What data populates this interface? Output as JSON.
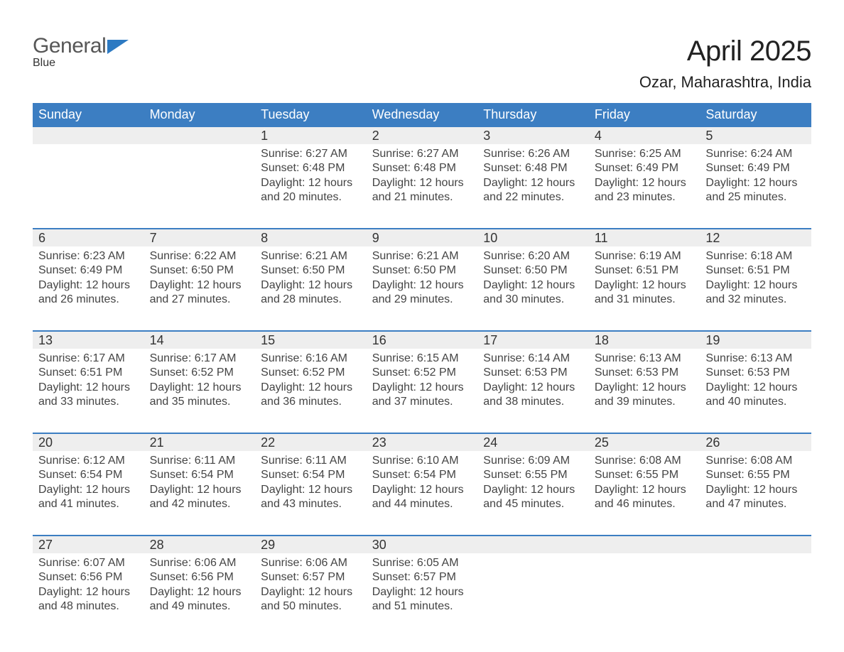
{
  "brand": {
    "part1": "General",
    "part2": "Blue"
  },
  "colors": {
    "header_blue": "#3c7ec2",
    "divider_blue": "#3c7ec2",
    "daynum_bg": "#eeeeee",
    "logo_gray": "#575757",
    "logo_blue": "#2d7ac2",
    "background": "#ffffff",
    "text": "#333333"
  },
  "title": "April 2025",
  "subtitle": "Ozar, Maharashtra, India",
  "weekdays": [
    "Sunday",
    "Monday",
    "Tuesday",
    "Wednesday",
    "Thursday",
    "Friday",
    "Saturday"
  ],
  "weeks": [
    [
      {
        "empty": true
      },
      {
        "empty": true
      },
      {
        "n": "1",
        "sunrise": "Sunrise: 6:27 AM",
        "sunset": "Sunset: 6:48 PM",
        "d1": "Daylight: 12 hours",
        "d2": "and 20 minutes."
      },
      {
        "n": "2",
        "sunrise": "Sunrise: 6:27 AM",
        "sunset": "Sunset: 6:48 PM",
        "d1": "Daylight: 12 hours",
        "d2": "and 21 minutes."
      },
      {
        "n": "3",
        "sunrise": "Sunrise: 6:26 AM",
        "sunset": "Sunset: 6:48 PM",
        "d1": "Daylight: 12 hours",
        "d2": "and 22 minutes."
      },
      {
        "n": "4",
        "sunrise": "Sunrise: 6:25 AM",
        "sunset": "Sunset: 6:49 PM",
        "d1": "Daylight: 12 hours",
        "d2": "and 23 minutes."
      },
      {
        "n": "5",
        "sunrise": "Sunrise: 6:24 AM",
        "sunset": "Sunset: 6:49 PM",
        "d1": "Daylight: 12 hours",
        "d2": "and 25 minutes."
      }
    ],
    [
      {
        "n": "6",
        "sunrise": "Sunrise: 6:23 AM",
        "sunset": "Sunset: 6:49 PM",
        "d1": "Daylight: 12 hours",
        "d2": "and 26 minutes."
      },
      {
        "n": "7",
        "sunrise": "Sunrise: 6:22 AM",
        "sunset": "Sunset: 6:50 PM",
        "d1": "Daylight: 12 hours",
        "d2": "and 27 minutes."
      },
      {
        "n": "8",
        "sunrise": "Sunrise: 6:21 AM",
        "sunset": "Sunset: 6:50 PM",
        "d1": "Daylight: 12 hours",
        "d2": "and 28 minutes."
      },
      {
        "n": "9",
        "sunrise": "Sunrise: 6:21 AM",
        "sunset": "Sunset: 6:50 PM",
        "d1": "Daylight: 12 hours",
        "d2": "and 29 minutes."
      },
      {
        "n": "10",
        "sunrise": "Sunrise: 6:20 AM",
        "sunset": "Sunset: 6:50 PM",
        "d1": "Daylight: 12 hours",
        "d2": "and 30 minutes."
      },
      {
        "n": "11",
        "sunrise": "Sunrise: 6:19 AM",
        "sunset": "Sunset: 6:51 PM",
        "d1": "Daylight: 12 hours",
        "d2": "and 31 minutes."
      },
      {
        "n": "12",
        "sunrise": "Sunrise: 6:18 AM",
        "sunset": "Sunset: 6:51 PM",
        "d1": "Daylight: 12 hours",
        "d2": "and 32 minutes."
      }
    ],
    [
      {
        "n": "13",
        "sunrise": "Sunrise: 6:17 AM",
        "sunset": "Sunset: 6:51 PM",
        "d1": "Daylight: 12 hours",
        "d2": "and 33 minutes."
      },
      {
        "n": "14",
        "sunrise": "Sunrise: 6:17 AM",
        "sunset": "Sunset: 6:52 PM",
        "d1": "Daylight: 12 hours",
        "d2": "and 35 minutes."
      },
      {
        "n": "15",
        "sunrise": "Sunrise: 6:16 AM",
        "sunset": "Sunset: 6:52 PM",
        "d1": "Daylight: 12 hours",
        "d2": "and 36 minutes."
      },
      {
        "n": "16",
        "sunrise": "Sunrise: 6:15 AM",
        "sunset": "Sunset: 6:52 PM",
        "d1": "Daylight: 12 hours",
        "d2": "and 37 minutes."
      },
      {
        "n": "17",
        "sunrise": "Sunrise: 6:14 AM",
        "sunset": "Sunset: 6:53 PM",
        "d1": "Daylight: 12 hours",
        "d2": "and 38 minutes."
      },
      {
        "n": "18",
        "sunrise": "Sunrise: 6:13 AM",
        "sunset": "Sunset: 6:53 PM",
        "d1": "Daylight: 12 hours",
        "d2": "and 39 minutes."
      },
      {
        "n": "19",
        "sunrise": "Sunrise: 6:13 AM",
        "sunset": "Sunset: 6:53 PM",
        "d1": "Daylight: 12 hours",
        "d2": "and 40 minutes."
      }
    ],
    [
      {
        "n": "20",
        "sunrise": "Sunrise: 6:12 AM",
        "sunset": "Sunset: 6:54 PM",
        "d1": "Daylight: 12 hours",
        "d2": "and 41 minutes."
      },
      {
        "n": "21",
        "sunrise": "Sunrise: 6:11 AM",
        "sunset": "Sunset: 6:54 PM",
        "d1": "Daylight: 12 hours",
        "d2": "and 42 minutes."
      },
      {
        "n": "22",
        "sunrise": "Sunrise: 6:11 AM",
        "sunset": "Sunset: 6:54 PM",
        "d1": "Daylight: 12 hours",
        "d2": "and 43 minutes."
      },
      {
        "n": "23",
        "sunrise": "Sunrise: 6:10 AM",
        "sunset": "Sunset: 6:54 PM",
        "d1": "Daylight: 12 hours",
        "d2": "and 44 minutes."
      },
      {
        "n": "24",
        "sunrise": "Sunrise: 6:09 AM",
        "sunset": "Sunset: 6:55 PM",
        "d1": "Daylight: 12 hours",
        "d2": "and 45 minutes."
      },
      {
        "n": "25",
        "sunrise": "Sunrise: 6:08 AM",
        "sunset": "Sunset: 6:55 PM",
        "d1": "Daylight: 12 hours",
        "d2": "and 46 minutes."
      },
      {
        "n": "26",
        "sunrise": "Sunrise: 6:08 AM",
        "sunset": "Sunset: 6:55 PM",
        "d1": "Daylight: 12 hours",
        "d2": "and 47 minutes."
      }
    ],
    [
      {
        "n": "27",
        "sunrise": "Sunrise: 6:07 AM",
        "sunset": "Sunset: 6:56 PM",
        "d1": "Daylight: 12 hours",
        "d2": "and 48 minutes."
      },
      {
        "n": "28",
        "sunrise": "Sunrise: 6:06 AM",
        "sunset": "Sunset: 6:56 PM",
        "d1": "Daylight: 12 hours",
        "d2": "and 49 minutes."
      },
      {
        "n": "29",
        "sunrise": "Sunrise: 6:06 AM",
        "sunset": "Sunset: 6:57 PM",
        "d1": "Daylight: 12 hours",
        "d2": "and 50 minutes."
      },
      {
        "n": "30",
        "sunrise": "Sunrise: 6:05 AM",
        "sunset": "Sunset: 6:57 PM",
        "d1": "Daylight: 12 hours",
        "d2": "and 51 minutes."
      },
      {
        "empty": true
      },
      {
        "empty": true
      },
      {
        "empty": true
      }
    ]
  ]
}
